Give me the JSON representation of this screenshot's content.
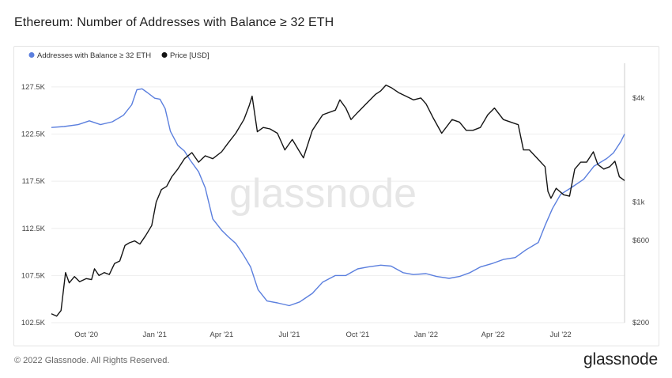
{
  "title": "Ethereum: Number of Addresses with Balance ≥ 32 ETH",
  "footer": {
    "copyright": "© 2022 Glassnode. All Rights Reserved.",
    "logo": "glassnode"
  },
  "watermark": "glassnode",
  "colors": {
    "addresses": "#5b7fde",
    "price": "#141414",
    "grid": "#eeeeee"
  },
  "chart_data": {
    "type": "line",
    "legend_position": "top-left",
    "x_range": [
      "2020-08-15",
      "2022-09-25"
    ],
    "x_ticks": [
      "Oct '20",
      "Jan '21",
      "Apr '21",
      "Jul '21",
      "Oct '21",
      "Jan '22",
      "Apr '22",
      "Jul '22"
    ],
    "x_tick_dates": [
      "2020-10-01",
      "2021-01-01",
      "2021-04-01",
      "2021-07-01",
      "2021-10-01",
      "2022-01-01",
      "2022-04-01",
      "2022-07-01"
    ],
    "y_left": {
      "range": [
        102500,
        129000
      ],
      "ticks": [
        102500,
        107500,
        112500,
        117500,
        122500,
        127500
      ],
      "tick_labels": [
        "102.5K",
        "107.5K",
        "112.5K",
        "117.5K",
        "122.5K",
        "127.5K"
      ]
    },
    "y_right": {
      "scale": "log",
      "range": [
        200,
        5600
      ],
      "ticks": [
        200,
        600,
        1000,
        4000
      ],
      "tick_labels": [
        "$200",
        "$600",
        "$1k",
        "$4k"
      ]
    },
    "series": [
      {
        "name": "Addresses with Balance ≥ 32 ETH",
        "axis": "left",
        "points": [
          [
            "2020-08-15",
            123200
          ],
          [
            "2020-09-01",
            123300
          ],
          [
            "2020-09-20",
            123500
          ],
          [
            "2020-10-05",
            123900
          ],
          [
            "2020-10-20",
            123500
          ],
          [
            "2020-11-05",
            123800
          ],
          [
            "2020-11-20",
            124500
          ],
          [
            "2020-12-01",
            125600
          ],
          [
            "2020-12-08",
            127200
          ],
          [
            "2020-12-15",
            127300
          ],
          [
            "2020-12-22",
            126900
          ],
          [
            "2021-01-01",
            126300
          ],
          [
            "2021-01-08",
            126200
          ],
          [
            "2021-01-15",
            125200
          ],
          [
            "2021-01-22",
            122800
          ],
          [
            "2021-02-01",
            121300
          ],
          [
            "2021-02-10",
            120700
          ],
          [
            "2021-02-18",
            119700
          ],
          [
            "2021-03-01",
            118500
          ],
          [
            "2021-03-10",
            116800
          ],
          [
            "2021-03-20",
            113500
          ],
          [
            "2021-04-01",
            112300
          ],
          [
            "2021-04-10",
            111600
          ],
          [
            "2021-04-20",
            110900
          ],
          [
            "2021-05-01",
            109600
          ],
          [
            "2021-05-10",
            108400
          ],
          [
            "2021-05-20",
            106000
          ],
          [
            "2021-06-01",
            104800
          ],
          [
            "2021-06-15",
            104600
          ],
          [
            "2021-07-01",
            104300
          ],
          [
            "2021-07-15",
            104700
          ],
          [
            "2021-08-01",
            105600
          ],
          [
            "2021-08-15",
            106800
          ],
          [
            "2021-09-01",
            107500
          ],
          [
            "2021-09-15",
            107500
          ],
          [
            "2021-10-01",
            108200
          ],
          [
            "2021-10-15",
            108400
          ],
          [
            "2021-11-01",
            108600
          ],
          [
            "2021-11-15",
            108500
          ],
          [
            "2021-12-01",
            107800
          ],
          [
            "2021-12-15",
            107600
          ],
          [
            "2022-01-01",
            107700
          ],
          [
            "2022-01-15",
            107400
          ],
          [
            "2022-02-01",
            107200
          ],
          [
            "2022-02-15",
            107400
          ],
          [
            "2022-03-01",
            107800
          ],
          [
            "2022-03-15",
            108400
          ],
          [
            "2022-04-01",
            108800
          ],
          [
            "2022-04-15",
            109200
          ],
          [
            "2022-05-01",
            109400
          ],
          [
            "2022-05-15",
            110200
          ],
          [
            "2022-06-01",
            111000
          ],
          [
            "2022-06-10",
            112800
          ],
          [
            "2022-06-20",
            114600
          ],
          [
            "2022-07-01",
            116100
          ],
          [
            "2022-07-15",
            116800
          ],
          [
            "2022-08-01",
            117700
          ],
          [
            "2022-08-15",
            119100
          ],
          [
            "2022-09-01",
            119900
          ],
          [
            "2022-09-10",
            120500
          ],
          [
            "2022-09-20",
            121700
          ],
          [
            "2022-09-25",
            122500
          ]
        ]
      },
      {
        "name": "Price [USD]",
        "axis": "right",
        "points": [
          [
            "2020-08-15",
            225
          ],
          [
            "2020-08-22",
            218
          ],
          [
            "2020-08-28",
            235
          ],
          [
            "2020-09-03",
            390
          ],
          [
            "2020-09-08",
            340
          ],
          [
            "2020-09-15",
            370
          ],
          [
            "2020-09-22",
            345
          ],
          [
            "2020-10-01",
            360
          ],
          [
            "2020-10-08",
            355
          ],
          [
            "2020-10-12",
            410
          ],
          [
            "2020-10-18",
            375
          ],
          [
            "2020-10-25",
            390
          ],
          [
            "2020-11-01",
            380
          ],
          [
            "2020-11-08",
            440
          ],
          [
            "2020-11-15",
            455
          ],
          [
            "2020-11-22",
            560
          ],
          [
            "2020-11-28",
            580
          ],
          [
            "2020-12-05",
            595
          ],
          [
            "2020-12-12",
            570
          ],
          [
            "2020-12-20",
            640
          ],
          [
            "2020-12-28",
            730
          ],
          [
            "2021-01-03",
            1000
          ],
          [
            "2021-01-10",
            1180
          ],
          [
            "2021-01-17",
            1230
          ],
          [
            "2021-01-24",
            1400
          ],
          [
            "2021-02-01",
            1550
          ],
          [
            "2021-02-10",
            1780
          ],
          [
            "2021-02-20",
            1930
          ],
          [
            "2021-03-01",
            1700
          ],
          [
            "2021-03-10",
            1850
          ],
          [
            "2021-03-20",
            1780
          ],
          [
            "2021-04-01",
            1950
          ],
          [
            "2021-04-10",
            2200
          ],
          [
            "2021-04-20",
            2500
          ],
          [
            "2021-05-01",
            3000
          ],
          [
            "2021-05-08",
            3600
          ],
          [
            "2021-05-12",
            4100
          ],
          [
            "2021-05-19",
            2550
          ],
          [
            "2021-05-27",
            2700
          ],
          [
            "2021-06-05",
            2650
          ],
          [
            "2021-06-15",
            2500
          ],
          [
            "2021-06-25",
            2000
          ],
          [
            "2021-07-05",
            2300
          ],
          [
            "2021-07-15",
            1950
          ],
          [
            "2021-07-20",
            1800
          ],
          [
            "2021-08-01",
            2600
          ],
          [
            "2021-08-15",
            3200
          ],
          [
            "2021-09-01",
            3400
          ],
          [
            "2021-09-07",
            3900
          ],
          [
            "2021-09-15",
            3500
          ],
          [
            "2021-09-22",
            3000
          ],
          [
            "2021-10-01",
            3300
          ],
          [
            "2021-10-15",
            3800
          ],
          [
            "2021-10-25",
            4200
          ],
          [
            "2021-11-01",
            4400
          ],
          [
            "2021-11-08",
            4750
          ],
          [
            "2021-11-15",
            4600
          ],
          [
            "2021-11-25",
            4300
          ],
          [
            "2021-12-05",
            4100
          ],
          [
            "2021-12-15",
            3900
          ],
          [
            "2021-12-25",
            4000
          ],
          [
            "2022-01-01",
            3700
          ],
          [
            "2022-01-10",
            3100
          ],
          [
            "2022-01-22",
            2500
          ],
          [
            "2022-02-05",
            3000
          ],
          [
            "2022-02-15",
            2900
          ],
          [
            "2022-02-24",
            2600
          ],
          [
            "2022-03-05",
            2600
          ],
          [
            "2022-03-15",
            2700
          ],
          [
            "2022-03-25",
            3200
          ],
          [
            "2022-04-03",
            3500
          ],
          [
            "2022-04-15",
            3000
          ],
          [
            "2022-04-25",
            2900
          ],
          [
            "2022-05-05",
            2800
          ],
          [
            "2022-05-12",
            2000
          ],
          [
            "2022-05-20",
            2000
          ],
          [
            "2022-05-30",
            1800
          ],
          [
            "2022-06-10",
            1600
          ],
          [
            "2022-06-14",
            1150
          ],
          [
            "2022-06-18",
            1050
          ],
          [
            "2022-06-25",
            1200
          ],
          [
            "2022-07-05",
            1100
          ],
          [
            "2022-07-13",
            1080
          ],
          [
            "2022-07-20",
            1550
          ],
          [
            "2022-07-28",
            1700
          ],
          [
            "2022-08-05",
            1700
          ],
          [
            "2022-08-14",
            1950
          ],
          [
            "2022-08-20",
            1650
          ],
          [
            "2022-08-28",
            1550
          ],
          [
            "2022-09-05",
            1600
          ],
          [
            "2022-09-12",
            1720
          ],
          [
            "2022-09-18",
            1400
          ],
          [
            "2022-09-25",
            1330
          ]
        ]
      }
    ]
  }
}
